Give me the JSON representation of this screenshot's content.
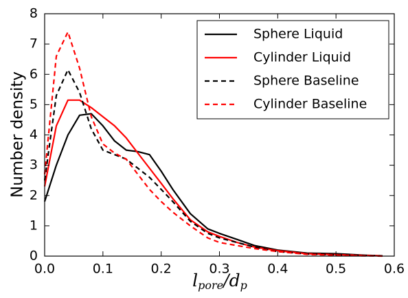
{
  "chart_data": {
    "type": "line",
    "xlabel_parts": [
      {
        "text": "l"
      },
      {
        "text": "pore",
        "sub": true
      },
      {
        "text": "/d"
      },
      {
        "text": "p",
        "sub": true
      }
    ],
    "ylabel": "Number density",
    "x": [
      0,
      0.02,
      0.04,
      0.06,
      0.08,
      0.1,
      0.12,
      0.14,
      0.16,
      0.18,
      0.2,
      0.22,
      0.25,
      0.28,
      0.3,
      0.33,
      0.36,
      0.4,
      0.45,
      0.5,
      0.55,
      0.58
    ],
    "series": [
      {
        "name": "Sphere Liquid",
        "color": "#000000",
        "dashed": false,
        "values": [
          1.8,
          3.0,
          4.0,
          4.65,
          4.7,
          4.3,
          3.8,
          3.5,
          3.45,
          3.35,
          2.8,
          2.2,
          1.4,
          0.9,
          0.75,
          0.55,
          0.35,
          0.2,
          0.1,
          0.08,
          0.03,
          0.01
        ]
      },
      {
        "name": "Cylinder Liquid",
        "color": "#ff0000",
        "dashed": false,
        "values": [
          2.3,
          4.3,
          5.15,
          5.15,
          4.9,
          4.6,
          4.3,
          3.9,
          3.4,
          2.9,
          2.4,
          1.9,
          1.2,
          0.8,
          0.65,
          0.45,
          0.3,
          0.18,
          0.08,
          0.05,
          0.02,
          0.01
        ]
      },
      {
        "name": "Sphere Baseline",
        "color": "#000000",
        "dashed": true,
        "values": [
          2.5,
          5.3,
          6.15,
          5.4,
          4.2,
          3.5,
          3.35,
          3.2,
          2.9,
          2.6,
          2.2,
          1.8,
          1.15,
          0.75,
          0.6,
          0.45,
          0.3,
          0.15,
          0.07,
          0.04,
          0.02,
          0.01
        ]
      },
      {
        "name": "Cylinder Baseline",
        "color": "#ff0000",
        "dashed": true,
        "values": [
          2.7,
          6.6,
          7.4,
          6.2,
          4.6,
          3.7,
          3.4,
          3.2,
          2.7,
          2.2,
          1.8,
          1.45,
          1.0,
          0.6,
          0.45,
          0.35,
          0.25,
          0.15,
          0.06,
          0.03,
          0.01,
          0
        ]
      }
    ],
    "xlim": [
      0,
      0.6
    ],
    "ylim": [
      0,
      8
    ],
    "xticks": [
      {
        "value": 0,
        "label": "0.0"
      },
      0.1,
      0.2,
      0.3,
      0.4,
      0.5,
      0.6
    ],
    "yticks": [
      0,
      1,
      2,
      3,
      4,
      5,
      6,
      7,
      8
    ],
    "legend": "upper right"
  }
}
